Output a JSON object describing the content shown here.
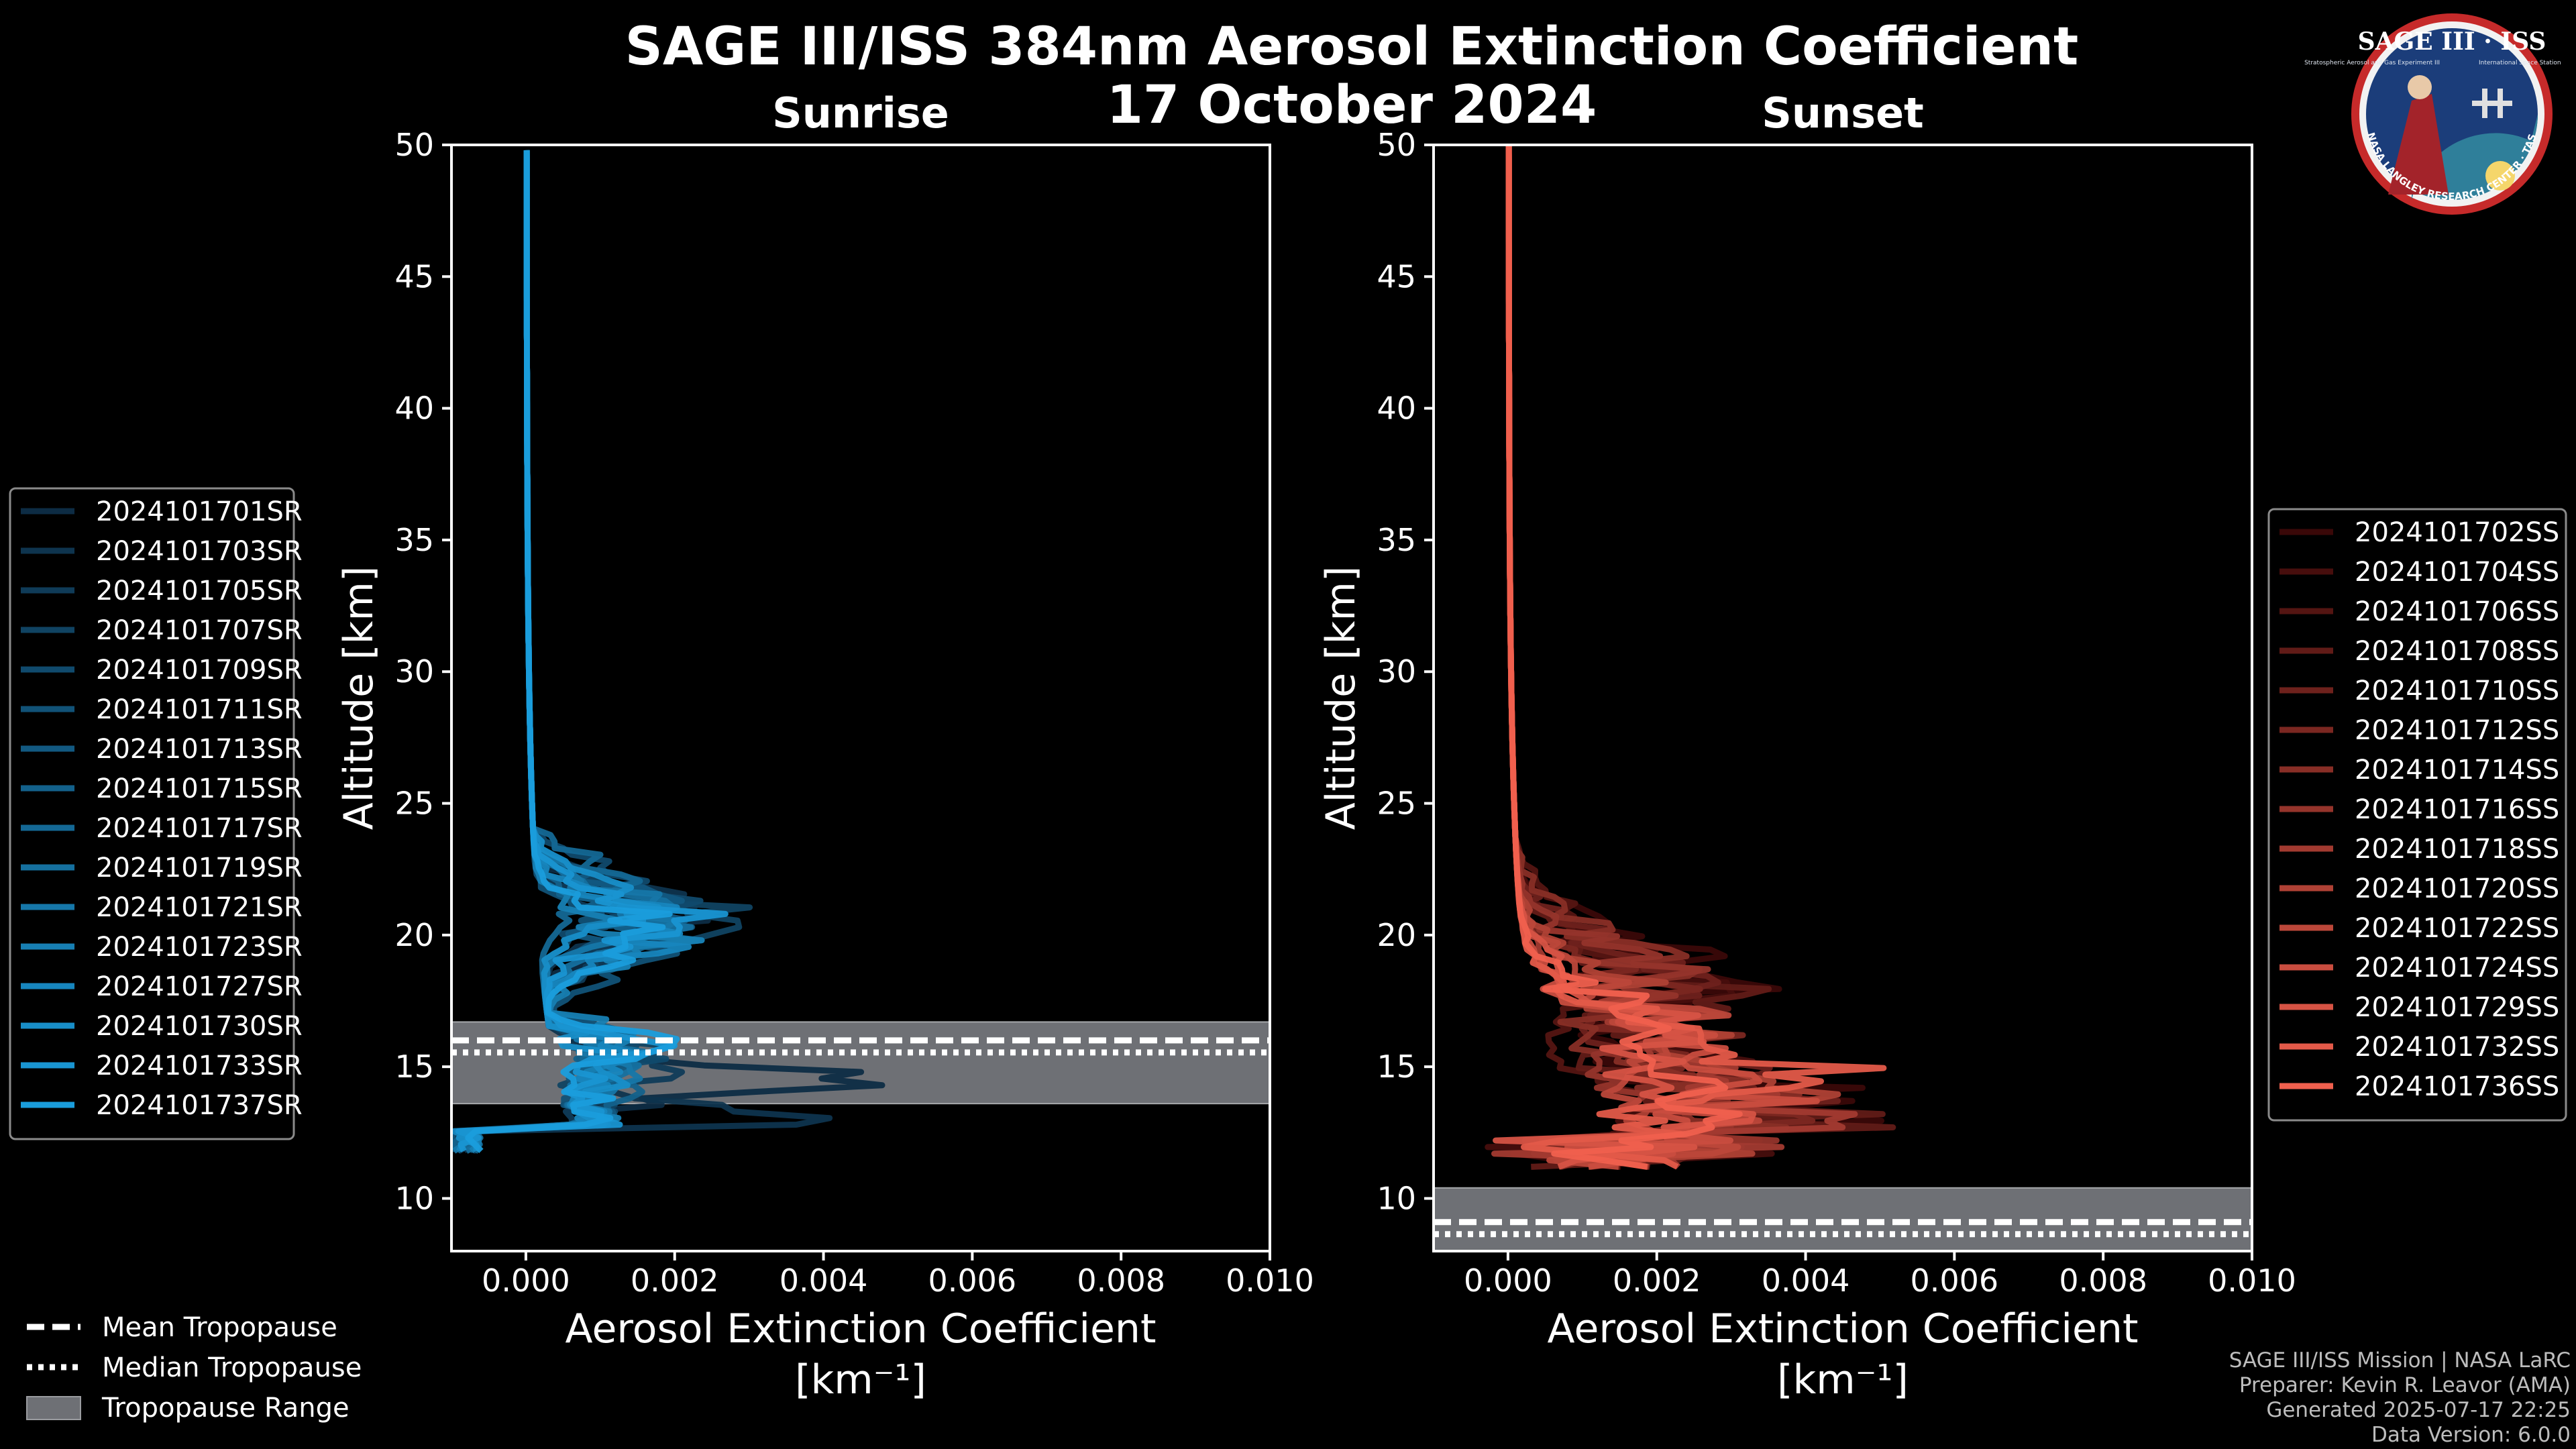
{
  "title_line1": "SAGE III/ISS 384nm Aerosol Extinction Coefficient",
  "title_line2": "17 October 2024",
  "logo": {
    "top_text": "SAGE III · ISS",
    "ring_text": "BALL · NASA LANGLEY RESEARCH CENTER · TAS-I · ESA",
    "sub_left": "Stratospheric Aerosol and Gas Experiment III",
    "sub_right": "International Space Station"
  },
  "tropopause_legend": {
    "mean": "Mean Tropopause",
    "median": "Median Tropopause",
    "range": "Tropopause Range"
  },
  "credits": [
    "SAGE III/ISS Mission | NASA LaRC",
    "Preparer: Kevin R. Leavor (AMA)",
    "Generated 2025-07-17 22:25",
    "Data Version: 6.0.0"
  ],
  "colors": {
    "background": "#000000",
    "sunrise_dark": "#0d2c44",
    "sunrise_light": "#1a9ddc",
    "sunset_dark": "#3a0808",
    "sunset_light": "#f0604e",
    "tropopause_band": "#6e7075"
  },
  "chart_data": [
    {
      "type": "line",
      "name": "sunrise",
      "title": "Sunrise",
      "xlabel": "Aerosol Extinction Coefficient",
      "xunit": "[km⁻¹]",
      "ylabel": "Altitude [km]",
      "xlim": [
        -0.001,
        0.01
      ],
      "ylim": [
        8,
        50
      ],
      "xticks": [
        "0.000",
        "0.002",
        "0.004",
        "0.006",
        "0.008",
        "0.010"
      ],
      "xtick_values": [
        0,
        0.002,
        0.004,
        0.006,
        0.008,
        0.01
      ],
      "yticks": [
        10,
        15,
        20,
        25,
        30,
        35,
        40,
        45,
        50
      ],
      "tropopause": {
        "mean": 16.0,
        "median": 15.9,
        "range": [
          13.6,
          16.7
        ]
      },
      "series": [
        {
          "name": "2024101701SR",
          "peak_alt": 20.5,
          "peak": 0.003,
          "low_alt": 14.5,
          "low": 0.0047
        },
        {
          "name": "2024101703SR",
          "peak_alt": 21.0,
          "peak": 0.0025,
          "low_alt": 13.0,
          "low": 0.0031
        },
        {
          "name": "2024101705SR",
          "peak_alt": 20.0,
          "peak": 0.0028,
          "low_alt": 15.0,
          "low": 0.0014
        },
        {
          "name": "2024101707SR",
          "peak_alt": 20.5,
          "peak": 0.0033,
          "low_alt": 16.0,
          "low": 0.0012
        },
        {
          "name": "2024101709SR",
          "peak_alt": 21.5,
          "peak": 0.0022,
          "low_alt": 15.5,
          "low": 0.001
        },
        {
          "name": "2024101711SR",
          "peak_alt": 19.5,
          "peak": 0.0026,
          "low_alt": 16.2,
          "low": 0.0013
        },
        {
          "name": "2024101713SR",
          "peak_alt": 21.0,
          "peak": 0.002,
          "low_alt": 15.0,
          "low": 0.0009
        },
        {
          "name": "2024101715SR",
          "peak_alt": 20.0,
          "peak": 0.0024,
          "low_alt": 14.0,
          "low": 0.0011
        },
        {
          "name": "2024101717SR",
          "peak_alt": 22.0,
          "peak": 0.0018,
          "low_alt": 16.0,
          "low": 0.0008
        },
        {
          "name": "2024101719SR",
          "peak_alt": 20.5,
          "peak": 0.0029,
          "low_alt": 15.5,
          "low": 0.0012
        },
        {
          "name": "2024101721SR",
          "peak_alt": 21.0,
          "peak": 0.0023,
          "low_alt": 14.5,
          "low": 0.001
        },
        {
          "name": "2024101723SR",
          "peak_alt": 19.8,
          "peak": 0.0021,
          "low_alt": 16.4,
          "low": 0.0013
        },
        {
          "name": "2024101727SR",
          "peak_alt": 20.3,
          "peak": 0.0027,
          "low_alt": 15.2,
          "low": 0.0011
        },
        {
          "name": "2024101730SR",
          "peak_alt": 21.2,
          "peak": 0.0019,
          "low_alt": 14.8,
          "low": 0.0009
        },
        {
          "name": "2024101733SR",
          "peak_alt": 20.6,
          "peak": 0.0025,
          "low_alt": 15.8,
          "low": 0.0012
        },
        {
          "name": "2024101737SR",
          "peak_alt": 20.0,
          "peak": 0.0022,
          "low_alt": 16.0,
          "low": 0.0014
        }
      ]
    },
    {
      "type": "line",
      "name": "sunset",
      "title": "Sunset",
      "xlabel": "Aerosol Extinction Coefficient",
      "xunit": "[km⁻¹]",
      "ylabel": "Altitude [km]",
      "xlim": [
        -0.001,
        0.01
      ],
      "ylim": [
        8,
        50
      ],
      "xticks": [
        "0.000",
        "0.002",
        "0.004",
        "0.006",
        "0.008",
        "0.010"
      ],
      "xtick_values": [
        0,
        0.002,
        0.004,
        0.006,
        0.008,
        0.01
      ],
      "yticks": [
        10,
        15,
        20,
        25,
        30,
        35,
        40,
        45,
        50
      ],
      "tropopause": {
        "mean": 9.1,
        "median": 9.0,
        "range": [
          8.0,
          10.4
        ]
      },
      "series": [
        {
          "name": "2024101702SS",
          "peak_alt": 18.5,
          "peak": 0.0034,
          "low_alt": 13.5,
          "low": 0.0055
        },
        {
          "name": "2024101704SS",
          "peak_alt": 18.0,
          "peak": 0.003,
          "low_alt": 14.5,
          "low": 0.0048
        },
        {
          "name": "2024101706SS",
          "peak_alt": 19.0,
          "peak": 0.0028,
          "low_alt": 12.5,
          "low": 0.0052
        },
        {
          "name": "2024101708SS",
          "peak_alt": 17.5,
          "peak": 0.0032,
          "low_alt": 13.0,
          "low": 0.0045
        },
        {
          "name": "2024101710SS",
          "peak_alt": 18.2,
          "peak": 0.0026,
          "low_alt": 14.0,
          "low": 0.0041
        },
        {
          "name": "2024101712SS",
          "peak_alt": 17.0,
          "peak": 0.0029,
          "low_alt": 12.8,
          "low": 0.0038
        },
        {
          "name": "2024101714SS",
          "peak_alt": 18.8,
          "peak": 0.0025,
          "low_alt": 13.5,
          "low": 0.0044
        },
        {
          "name": "2024101716SS",
          "peak_alt": 17.8,
          "peak": 0.0031,
          "low_alt": 12.5,
          "low": 0.0036
        },
        {
          "name": "2024101718SS",
          "peak_alt": 16.5,
          "peak": 0.0027,
          "low_alt": 13.2,
          "low": 0.004
        },
        {
          "name": "2024101720SS",
          "peak_alt": 17.2,
          "peak": 0.0024,
          "low_alt": 14.2,
          "low": 0.0037
        },
        {
          "name": "2024101722SS",
          "peak_alt": 16.8,
          "peak": 0.0028,
          "low_alt": 12.2,
          "low": 0.0035
        },
        {
          "name": "2024101724SS",
          "peak_alt": 16.0,
          "peak": 0.0022,
          "low_alt": 13.8,
          "low": 0.0039
        },
        {
          "name": "2024101729SS",
          "peak_alt": 16.5,
          "peak": 0.0025,
          "low_alt": 13.0,
          "low": 0.0034
        },
        {
          "name": "2024101732SS",
          "peak_alt": 15.8,
          "peak": 0.0021,
          "low_alt": 14.5,
          "low": 0.0032
        },
        {
          "name": "2024101736SS",
          "peak_alt": 16.2,
          "peak": 0.0023,
          "low_alt": 12.8,
          "low": 0.0036
        }
      ]
    }
  ]
}
